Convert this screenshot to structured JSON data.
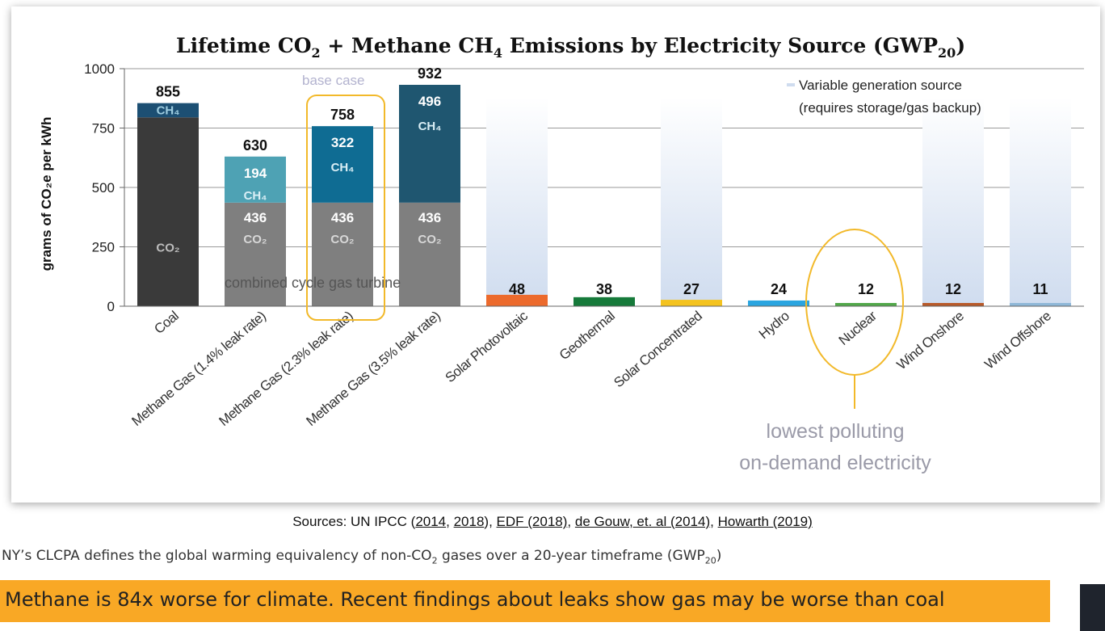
{
  "chart_data": {
    "type": "bar",
    "stacked": true,
    "title_parts": {
      "a": "Lifetime CO",
      "a_sub": "2",
      "b": " + Methane CH",
      "b_sub": "4",
      "c": " Emissions by Electricity Source (GWP",
      "c_sub": "20",
      "d": ")"
    },
    "ylabel": "grams of CO₂e per kWh",
    "ylim": [
      0,
      1000
    ],
    "yticks": [
      0,
      250,
      500,
      750,
      1000
    ],
    "categories": [
      "Coal",
      "Methane Gas (1.4% leak rate)",
      "Methane Gas (2.3% leak rate)",
      "Methane Gas (3.5% leak rate)",
      "Solar Photovoltaic",
      "Geothermal",
      "Solar Concentrated",
      "Hydro",
      "Nuclear",
      "Wind Onshore",
      "Wind Offshore"
    ],
    "series": [
      {
        "name": "CO2",
        "values": [
          795,
          436,
          436,
          436,
          48,
          38,
          27,
          24,
          12,
          12,
          11
        ]
      },
      {
        "name": "CH4",
        "values": [
          60,
          194,
          322,
          496,
          0,
          0,
          0,
          0,
          0,
          0,
          0
        ]
      }
    ],
    "totals": [
      855,
      630,
      758,
      932,
      48,
      38,
      27,
      24,
      12,
      12,
      11
    ],
    "ch4_value_labels": [
      "",
      "194",
      "322",
      "496",
      "",
      "",
      "",
      "",
      "",
      "",
      ""
    ],
    "co2_value_labels": [
      "",
      "436",
      "436",
      "436",
      "",
      "",
      "",
      "",
      "",
      "",
      ""
    ],
    "co2_labels": [
      "CO₂",
      "CO₂",
      "CO₂",
      "CO₂",
      "",
      "",
      "",
      "",
      "",
      "",
      ""
    ],
    "ch4_labels": [
      "CH₄",
      "CH₄",
      "CH₄",
      "CH₄",
      "",
      "",
      "",
      "",
      "",
      "",
      ""
    ],
    "variable_source": [
      false,
      false,
      false,
      false,
      true,
      false,
      true,
      false,
      false,
      true,
      true
    ],
    "bar_colors": [
      "#3a3a3a",
      "#7f7f7f",
      "#7f7f7f",
      "#7f7f7f",
      "#ec6a2c",
      "#167a3a",
      "#f4c31f",
      "#2aa5e0",
      "#52a84a",
      "#b85a2a",
      "#8fb8d8"
    ],
    "ch4_colors": [
      "#1c4f73",
      "#4ea2b4",
      "#0f6c93",
      "#1f5670"
    ],
    "co2_label_colors": [
      "#bdbdbd",
      "#d8d8d8",
      "#d8d8d8",
      "#d8d8d8"
    ],
    "ch4_label_colors": [
      "#9ecde0",
      "#d9eef5",
      "#d9eef5",
      "#d9eef5"
    ],
    "legend": {
      "line1": "Variable generation source",
      "line2": "(requires storage/gas backup)"
    },
    "annotations": {
      "base_case": "base case",
      "ccgt": "combined cycle gas turbine",
      "callout_line1": "lowest polluting",
      "callout_line2": "on-demand electricity"
    },
    "highlight_color": "#f2b92a"
  },
  "footer": {
    "sources_prefix": "Sources: UN IPCC (",
    "src1": "2014",
    "sep1": ", ",
    "src2": "2018",
    "sep2": "), ",
    "src3": "EDF (2018)",
    "sep3": ", ",
    "src4": "de Gouw, et. al (2014)",
    "sep4": ", ",
    "src5": "Howarth (2019)",
    "clcpa_a": "NY’s CLCPA defines the global warming equivalency of non-CO",
    "clcpa_sub1": "2",
    "clcpa_b": " gases over a 20-year timeframe (GWP",
    "clcpa_sub2": "20",
    "clcpa_c": ")",
    "banner": "Methane is 84x worse for climate.  Recent findings about leaks show gas may be worse than coal"
  }
}
